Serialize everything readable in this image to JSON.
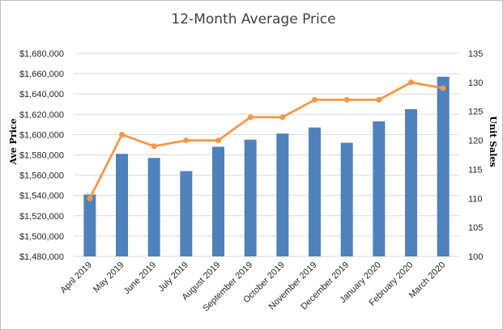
{
  "chart_data": {
    "type": "bar",
    "title": "12-Month Average Price",
    "ylabel": "Ave Price",
    "y2label": "Unit Sales",
    "categories": [
      "April 2019",
      "May 2019",
      "June 2019",
      "July 2019",
      "August 2019",
      "September 2019",
      "October 2019",
      "November 2019",
      "December 2019",
      "January 2020",
      "February 2020",
      "March 2020"
    ],
    "ylim": [
      1480000,
      1680000
    ],
    "y2lim": [
      100,
      135
    ],
    "yticks": [
      "$1,480,000",
      "$1,500,000",
      "$1,520,000",
      "$1,540,000",
      "$1,560,000",
      "$1,580,000",
      "$1,600,000",
      "$1,620,000",
      "$1,640,000",
      "$1,660,000",
      "$1,680,000"
    ],
    "y2ticks": [
      "100",
      "105",
      "110",
      "115",
      "120",
      "125",
      "130",
      "135"
    ],
    "grid": true,
    "legend": "none",
    "series": [
      {
        "type": "bar",
        "axis": "left",
        "color": "#4f81bd",
        "values": [
          1541000,
          1581000,
          1577000,
          1564000,
          1588000,
          1595000,
          1601000,
          1607000,
          1592000,
          1613000,
          1625000,
          1657000
        ]
      },
      {
        "type": "line",
        "axis": "right",
        "color": "#f79646",
        "values": [
          110,
          121,
          119,
          120,
          120,
          124,
          124,
          127,
          127,
          127,
          130,
          129
        ]
      }
    ]
  }
}
